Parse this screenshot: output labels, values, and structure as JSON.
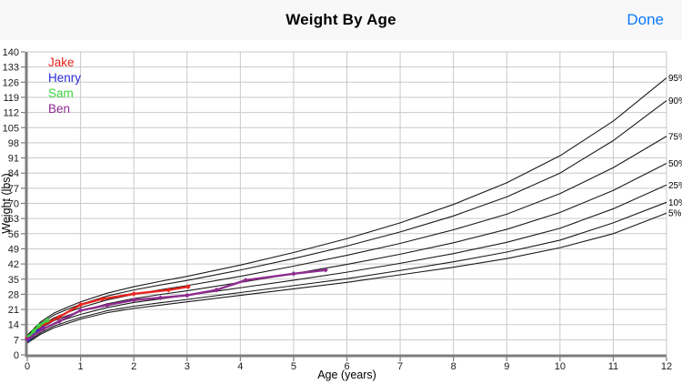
{
  "header": {
    "title": "Weight By Age",
    "done_label": "Done"
  },
  "colors": {
    "accent_blue": "#0b79fe",
    "grid": "#c9c9c9",
    "axis": "#7d7d7d",
    "percentile_line": "#1a1a1a",
    "tick_text": "#1a1a1a",
    "header_bg": "#f8f8f8"
  },
  "chart_data": {
    "type": "line",
    "title": "Weight By Age",
    "xlabel": "Age (years)",
    "ylabel": "Weight (lbs)",
    "xlim": [
      0,
      12
    ],
    "ylim": [
      0,
      140
    ],
    "xticks": [
      0,
      1,
      2,
      3,
      4,
      5,
      6,
      7,
      8,
      9,
      10,
      11,
      12
    ],
    "yticks": [
      0,
      7,
      14,
      21,
      28,
      35,
      42,
      49,
      56,
      63,
      70,
      77,
      84,
      91,
      98,
      105,
      112,
      119,
      126,
      133,
      140
    ],
    "grid": true,
    "legend_position": "top-left",
    "percentile_ages": [
      0,
      0.25,
      0.5,
      0.75,
      1,
      1.5,
      2,
      2.5,
      3,
      4,
      5,
      6,
      7,
      8,
      9,
      10,
      11,
      12
    ],
    "percentile_series": [
      {
        "name": "95%",
        "values": [
          9.1,
          15.2,
          19.3,
          22.0,
          24.5,
          28.5,
          31.5,
          34.0,
          36.3,
          41.5,
          47.3,
          53.7,
          61.0,
          69.5,
          79.5,
          92.0,
          108.0,
          128.0
        ]
      },
      {
        "name": "90%",
        "values": [
          8.7,
          14.5,
          18.4,
          21.0,
          23.4,
          27.2,
          30.0,
          32.3,
          34.4,
          39.2,
          44.5,
          50.3,
          56.8,
          64.2,
          73.0,
          84.0,
          99.0,
          117.5
        ]
      },
      {
        "name": "75%",
        "values": [
          8.0,
          13.4,
          17.1,
          19.6,
          21.8,
          25.4,
          28.0,
          30.1,
          32.0,
          36.3,
          41.0,
          46.0,
          51.5,
          57.8,
          65.0,
          74.5,
          86.5,
          101.0
        ]
      },
      {
        "name": "50%",
        "values": [
          7.3,
          12.3,
          15.8,
          18.1,
          20.2,
          23.6,
          26.0,
          27.9,
          29.6,
          33.5,
          37.5,
          41.8,
          46.5,
          51.8,
          58.0,
          65.8,
          76.0,
          88.5
        ]
      },
      {
        "name": "25%",
        "values": [
          6.6,
          11.2,
          14.5,
          16.7,
          18.7,
          21.9,
          24.2,
          25.9,
          27.5,
          31.0,
          34.5,
          38.2,
          42.3,
          46.8,
          52.0,
          58.5,
          67.5,
          78.5
        ]
      },
      {
        "name": "10%",
        "values": [
          6.0,
          10.2,
          13.3,
          15.4,
          17.3,
          20.4,
          22.5,
          24.1,
          25.6,
          28.8,
          32.0,
          35.2,
          39.0,
          43.0,
          47.5,
          53.0,
          61.0,
          70.5
        ]
      },
      {
        "name": "5%",
        "values": [
          5.5,
          9.5,
          12.5,
          14.5,
          16.5,
          19.5,
          21.5,
          23.0,
          24.5,
          27.5,
          30.5,
          33.5,
          37.0,
          40.5,
          44.5,
          49.5,
          56.0,
          65.5
        ]
      }
    ],
    "children_series": [
      {
        "name": "Jake",
        "color": "#e8241f",
        "x": [
          0,
          0.12,
          0.3,
          0.6,
          1.0,
          1.4,
          2.0,
          2.65,
          3.02
        ],
        "y": [
          7.8,
          10.5,
          13.8,
          17.5,
          23.2,
          25.8,
          28.2,
          30.0,
          31.5
        ]
      },
      {
        "name": "Henry",
        "color": "#2b2bd9",
        "x": [
          0.02,
          0.1,
          0.2,
          0.3
        ],
        "y": [
          7.0,
          9.0,
          11.0,
          12.5
        ]
      },
      {
        "name": "Sam",
        "color": "#3ed43e",
        "x": [
          0.03,
          0.12,
          0.22,
          0.38
        ],
        "y": [
          8.5,
          11.0,
          13.5,
          16.0
        ]
      },
      {
        "name": "Ben",
        "color": "#8e2d8e",
        "x": [
          0,
          0.3,
          0.6,
          1.0,
          1.5,
          2.0,
          2.5,
          3.0,
          3.55,
          4.1,
          5.0,
          5.6
        ],
        "y": [
          7.2,
          12.0,
          15.5,
          20.5,
          23.0,
          25.3,
          26.4,
          27.5,
          30.0,
          34.5,
          37.5,
          39.2
        ]
      }
    ]
  }
}
